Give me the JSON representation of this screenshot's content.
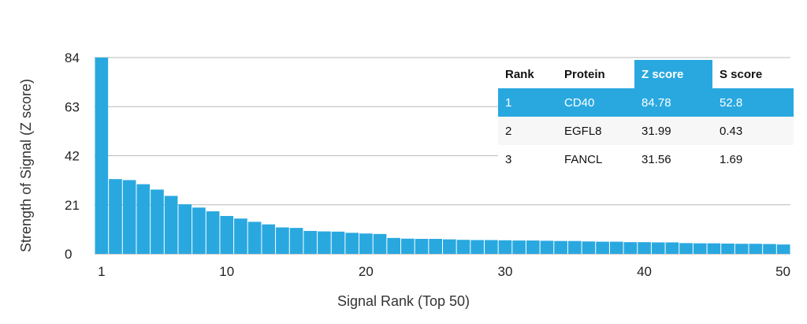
{
  "colors": {
    "bar": "#29a8e0",
    "grid": "#bbbbbb",
    "highlight": "#29a8e0"
  },
  "chart_data": {
    "type": "bar",
    "xlabel": "Signal Rank (Top 50)",
    "ylabel": "Strength of Signal (Z score)",
    "ylim": [
      0,
      84
    ],
    "yticks": [
      0,
      21,
      42,
      63,
      84
    ],
    "xticks": [
      1,
      10,
      20,
      30,
      40,
      50
    ],
    "grid": true,
    "x": [
      1,
      2,
      3,
      4,
      5,
      6,
      7,
      8,
      9,
      10,
      11,
      12,
      13,
      14,
      15,
      16,
      17,
      18,
      19,
      20,
      21,
      22,
      23,
      24,
      25,
      26,
      27,
      28,
      29,
      30,
      31,
      32,
      33,
      34,
      35,
      36,
      37,
      38,
      39,
      40,
      41,
      42,
      43,
      44,
      45,
      46,
      47,
      48,
      49,
      50
    ],
    "values": [
      84.78,
      31.99,
      31.56,
      29.8,
      27.5,
      24.8,
      21.2,
      19.8,
      18.2,
      16.2,
      15.1,
      13.7,
      12.6,
      11.3,
      11.1,
      9.8,
      9.6,
      9.5,
      9.0,
      8.7,
      8.5,
      6.8,
      6.5,
      6.4,
      6.4,
      6.2,
      6.0,
      5.9,
      5.9,
      5.8,
      5.7,
      5.7,
      5.6,
      5.5,
      5.5,
      5.3,
      5.2,
      5.2,
      5.0,
      5.0,
      4.9,
      4.9,
      4.6,
      4.5,
      4.5,
      4.4,
      4.3,
      4.3,
      4.2,
      4.0
    ]
  },
  "table": {
    "headers": [
      "Rank",
      "Protein",
      "Z score",
      "S score"
    ],
    "rows": [
      [
        "1",
        "CD40",
        "84.78",
        "52.8"
      ],
      [
        "2",
        "EGFL8",
        "31.99",
        "0.43"
      ],
      [
        "3",
        "FANCL",
        "31.56",
        "1.69"
      ]
    ]
  }
}
